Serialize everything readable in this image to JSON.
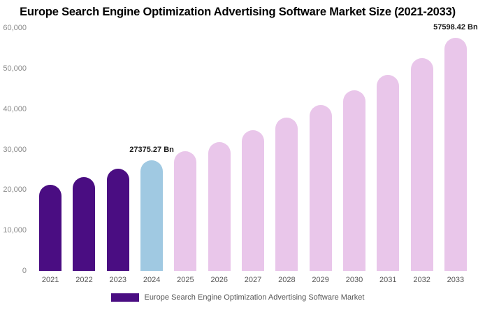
{
  "chart_data": {
    "type": "bar",
    "title": "Europe Search Engine Optimization Advertising Software Market Size (2021-2033)",
    "categories": [
      "2021",
      "2022",
      "2023",
      "2024",
      "2025",
      "2026",
      "2027",
      "2028",
      "2029",
      "2030",
      "2031",
      "2032",
      "2033"
    ],
    "values": [
      21300,
      23200,
      25200,
      27375.27,
      29500,
      31900,
      34800,
      37800,
      41000,
      44700,
      48500,
      52600,
      57598.42
    ],
    "point_labels": [
      "",
      "",
      "",
      "27375.27 Bn",
      "",
      "",
      "",
      "",
      "",
      "",
      "",
      "",
      "57598.42 Bn"
    ],
    "colors": [
      "#4a0d82",
      "#4a0d82",
      "#4a0d82",
      "#a0c9e2",
      "#e9c6ea",
      "#e9c6ea",
      "#e9c6ea",
      "#e9c6ea",
      "#e9c6ea",
      "#e9c6ea",
      "#e9c6ea",
      "#e9c6ea",
      "#e9c6ea"
    ],
    "ylim": [
      0,
      60000
    ],
    "y_ticks": [
      "0",
      "10,000",
      "20,000",
      "30,000",
      "40,000",
      "50,000",
      "60,000"
    ],
    "grid": false,
    "xlabel": "",
    "ylabel": "",
    "legend": {
      "label": "Europe Search Engine Optimization Advertising Software Market",
      "swatch_color": "#4a0d82",
      "position": "bottom"
    }
  }
}
